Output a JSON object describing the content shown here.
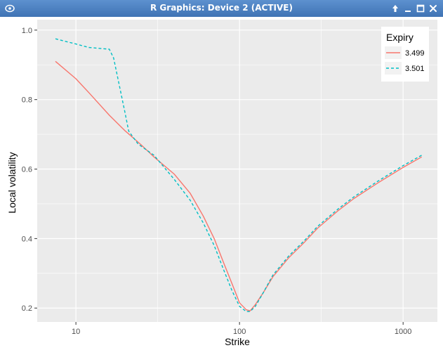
{
  "window": {
    "title": "R Graphics: Device 2 (ACTIVE)"
  },
  "icons": {
    "app": "r-graphics-app-icon",
    "pin": "pin-icon",
    "minimize": "minimize-icon",
    "maximize": "maximize-icon",
    "close": "close-icon"
  },
  "colors": {
    "series_1": "#F8766D",
    "series_2": "#00BFC4",
    "panel": "#EBEBEB"
  },
  "chart_data": {
    "type": "line",
    "xlabel": "Strike",
    "ylabel": "Local volatility",
    "x_scale": "log10",
    "xlim": [
      5.8,
      1620
    ],
    "ylim": [
      0.16,
      1.03
    ],
    "x_ticks": [
      10,
      100,
      1000
    ],
    "x_tick_labels": [
      "10",
      "100",
      "1000"
    ],
    "y_ticks": [
      0.2,
      0.4,
      0.6,
      0.8,
      1.0
    ],
    "y_tick_labels": [
      "0.2",
      "0.4",
      "0.6",
      "0.8",
      "1.0"
    ],
    "grid": true,
    "legend": {
      "title": "Expiry",
      "position": "top-right"
    },
    "series": [
      {
        "name": "3.499",
        "linetype": "solid",
        "x": [
          7.5,
          10,
          12,
          16,
          20,
          25,
          30,
          40,
          50,
          60,
          70,
          80,
          90,
          100,
          110,
          116,
          125,
          140,
          160,
          200,
          250,
          300,
          400,
          500,
          700,
          1000,
          1300
        ],
        "y": [
          0.91,
          0.86,
          0.82,
          0.755,
          0.71,
          0.67,
          0.635,
          0.585,
          0.53,
          0.465,
          0.4,
          0.33,
          0.27,
          0.215,
          0.195,
          0.192,
          0.21,
          0.245,
          0.29,
          0.345,
          0.39,
          0.43,
          0.48,
          0.515,
          0.56,
          0.605,
          0.635
        ]
      },
      {
        "name": "3.501",
        "linetype": "dashed",
        "x": [
          7.5,
          10,
          12,
          16,
          17,
          20,
          21,
          24,
          30,
          40,
          50,
          60,
          70,
          80,
          90,
          100,
          110,
          116,
          125,
          140,
          160,
          200,
          250,
          300,
          400,
          500,
          700,
          1000,
          1300
        ],
        "y": [
          0.975,
          0.96,
          0.95,
          0.945,
          0.92,
          0.76,
          0.71,
          0.672,
          0.64,
          0.57,
          0.51,
          0.445,
          0.38,
          0.31,
          0.25,
          0.205,
          0.19,
          0.19,
          0.205,
          0.245,
          0.295,
          0.35,
          0.395,
          0.435,
          0.485,
          0.52,
          0.565,
          0.61,
          0.64
        ]
      }
    ]
  }
}
